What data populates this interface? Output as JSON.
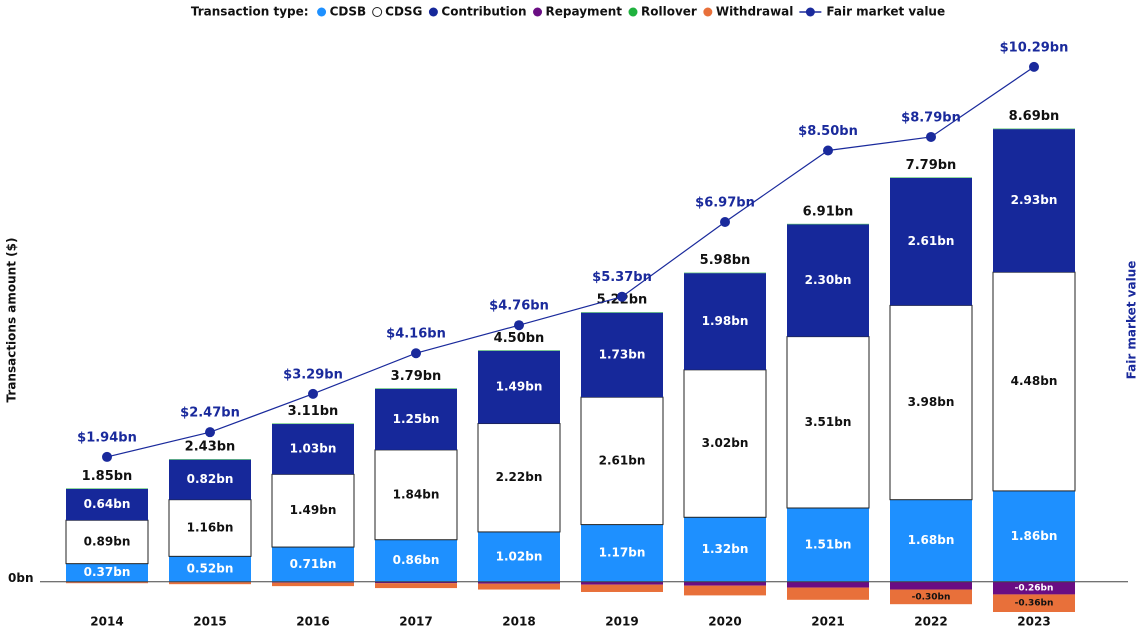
{
  "chart_data": {
    "type": "stacked-bar-line",
    "legend_title": "Transaction type:",
    "y_axis_label": "Transactions amount ($)",
    "y2_axis_label": "Fair market value",
    "categories": [
      "2014",
      "2015",
      "2016",
      "2017",
      "2018",
      "2019",
      "2020",
      "2021",
      "2022",
      "2023"
    ],
    "ylim": [
      -0.62,
      11.3
    ],
    "yticks": [
      {
        "value": 0,
        "label": "0bn"
      }
    ],
    "y2lim": [
      -1.38,
      11.08
    ],
    "series": [
      {
        "name": "CDSB",
        "color": "#1e90ff",
        "values": [
          0.37,
          0.52,
          0.71,
          0.86,
          1.02,
          1.17,
          1.32,
          1.51,
          1.68,
          1.86
        ],
        "value_labels": [
          "0.37bn",
          "0.52bn",
          "0.71bn",
          "0.86bn",
          "1.02bn",
          "1.17bn",
          "1.32bn",
          "1.51bn",
          "1.68bn",
          "1.86bn"
        ]
      },
      {
        "name": "CDSG",
        "color": "#ffffff",
        "values": [
          0.89,
          1.16,
          1.49,
          1.84,
          2.22,
          2.61,
          3.02,
          3.51,
          3.98,
          4.48
        ],
        "value_labels": [
          "0.89bn",
          "1.16bn",
          "1.49bn",
          "1.84bn",
          "2.22bn",
          "2.61bn",
          "3.02bn",
          "3.51bn",
          "3.98bn",
          "4.48bn"
        ]
      },
      {
        "name": "Contribution",
        "color": "#16289a",
        "values": [
          0.64,
          0.82,
          1.03,
          1.25,
          1.49,
          1.73,
          1.98,
          2.3,
          2.61,
          2.93
        ],
        "value_labels": [
          "0.64bn",
          "0.82bn",
          "1.03bn",
          "1.25bn",
          "1.49bn",
          "1.73bn",
          "1.98bn",
          "2.30bn",
          "2.61bn",
          "2.93bn"
        ]
      },
      {
        "name": "Repayment",
        "color": "#6a0d83",
        "values": [
          -0.01,
          -0.01,
          -0.02,
          -0.03,
          -0.04,
          -0.06,
          -0.08,
          -0.12,
          -0.16,
          -0.26
        ],
        "value_labels": [
          null,
          null,
          null,
          null,
          null,
          null,
          null,
          null,
          null,
          "-0.26bn"
        ]
      },
      {
        "name": "Rollover",
        "color": "#1fb13e",
        "values": [
          0.01,
          0.01,
          0.01,
          0.01,
          0.01,
          0.01,
          0.01,
          0.01,
          0.01,
          0.01
        ],
        "value_labels": [
          null,
          null,
          null,
          null,
          null,
          null,
          null,
          null,
          null,
          null
        ]
      },
      {
        "name": "Withdrawal",
        "color": "#e8703a",
        "values": [
          -0.02,
          -0.04,
          -0.07,
          -0.1,
          -0.12,
          -0.15,
          -0.2,
          -0.25,
          -0.3,
          -0.36
        ],
        "value_labels": [
          null,
          null,
          null,
          null,
          null,
          null,
          null,
          null,
          "-0.30bn",
          "-0.36bn"
        ]
      }
    ],
    "totals": {
      "values": [
        1.85,
        2.43,
        3.11,
        3.79,
        4.5,
        5.22,
        5.98,
        6.91,
        7.79,
        8.69
      ],
      "value_labels": [
        "1.85bn",
        "2.43bn",
        "3.11bn",
        "3.79bn",
        "4.50bn",
        "5.22bn",
        "5.98bn",
        "6.91bn",
        "7.79bn",
        "8.69bn"
      ]
    },
    "line": {
      "name": "Fair market value",
      "color": "#1a2a9c",
      "axis": "y2",
      "values": [
        1.94,
        2.47,
        3.29,
        4.16,
        4.76,
        5.37,
        6.97,
        8.5,
        8.79,
        10.29
      ],
      "value_labels": [
        "$1.94bn",
        "$2.47bn",
        "$3.29bn",
        "$4.16bn",
        "$4.76bn",
        "$5.37bn",
        "$6.97bn",
        "$8.50bn",
        "$8.79bn",
        "$10.29bn"
      ]
    }
  }
}
